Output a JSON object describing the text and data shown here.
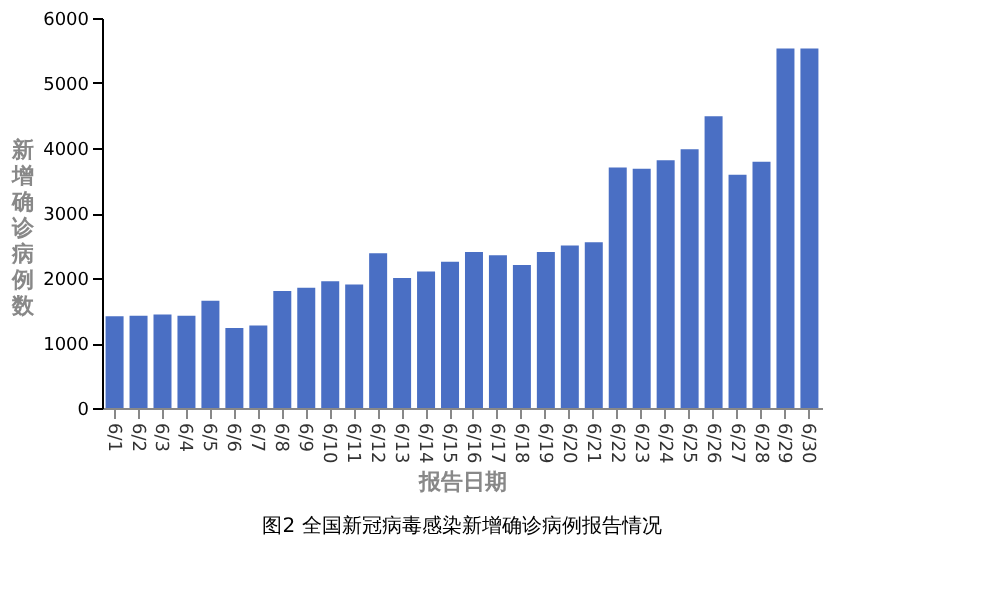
{
  "chart_data": {
    "type": "bar",
    "xlabel": "报告日期",
    "ylabel": "新增确诊病例数",
    "annotations": [
      "图2 全国新冠病毒感染新增确诊病例报告情况"
    ],
    "categories": [
      "6/1",
      "6/2",
      "6/3",
      "6/4",
      "6/5",
      "6/6",
      "6/7",
      "6/8",
      "6/9",
      "6/10",
      "6/11",
      "6/12",
      "6/13",
      "6/14",
      "6/15",
      "6/16",
      "6/17",
      "6/18",
      "6/19",
      "6/20",
      "6/21",
      "6/22",
      "6/23",
      "6/24",
      "6/25",
      "6/26",
      "6/27",
      "6/28",
      "6/29",
      "6/30"
    ],
    "values": [
      1410,
      1420,
      1440,
      1420,
      1650,
      1230,
      1270,
      1800,
      1850,
      1950,
      1900,
      2380,
      2000,
      2100,
      2250,
      2400,
      2350,
      2200,
      2400,
      2500,
      2550,
      3700,
      3680,
      3810,
      3980,
      4490,
      3590,
      3790,
      5530,
      5530
    ],
    "color": "#4a6fc4",
    "ylim": [
      0,
      6000
    ],
    "yticks": [
      0,
      1000,
      2000,
      3000,
      4000,
      5000,
      6000
    ],
    "grid": false
  }
}
